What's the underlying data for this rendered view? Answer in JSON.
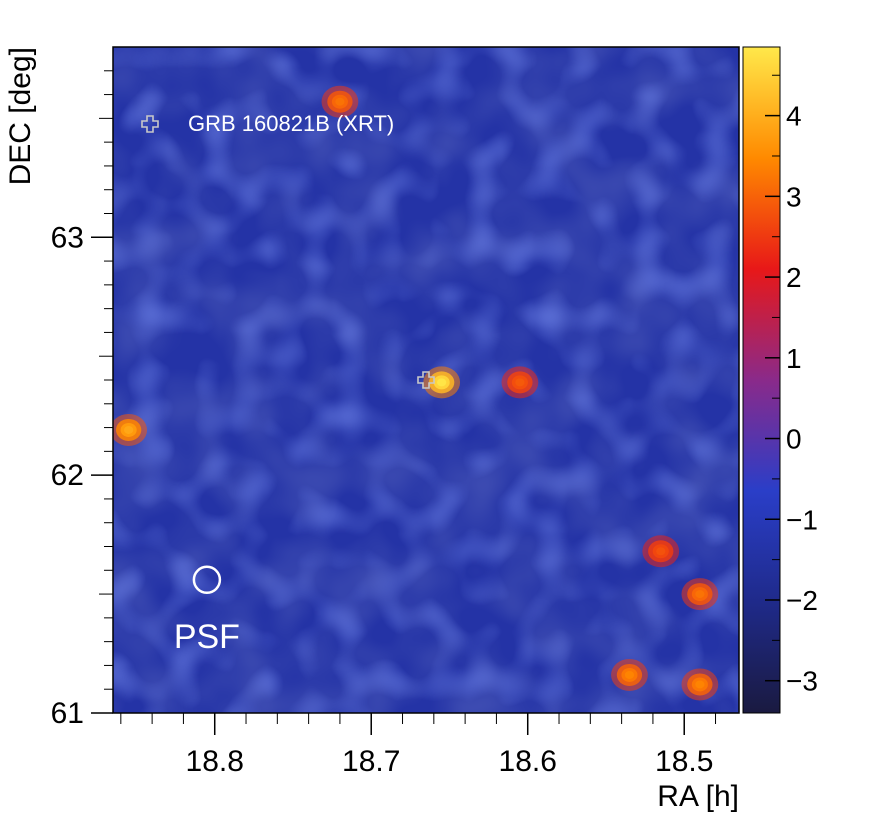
{
  "chart_data": {
    "type": "heatmap",
    "title": "",
    "xlabel": "RA [h]",
    "ylabel": "DEC [deg]",
    "x_reversed": true,
    "xlim": [
      18.865,
      18.465
    ],
    "ylim": [
      61.0,
      63.8
    ],
    "xticks": [
      {
        "value": 18.8,
        "label": "18.8"
      },
      {
        "value": 18.7,
        "label": "18.7"
      },
      {
        "value": 18.6,
        "label": "18.6"
      },
      {
        "value": 18.5,
        "label": "18.5"
      }
    ],
    "yticks": [
      {
        "value": 61,
        "label": "61"
      },
      {
        "value": 62,
        "label": "62"
      },
      {
        "value": 63,
        "label": "63"
      }
    ],
    "colorbar": {
      "range": [
        -3.4,
        4.85
      ],
      "ticks": [
        {
          "value": 4,
          "label": "4"
        },
        {
          "value": 3,
          "label": "3"
        },
        {
          "value": 2,
          "label": "2"
        },
        {
          "value": 1,
          "label": "1"
        },
        {
          "value": 0,
          "label": "0"
        },
        {
          "value": -1,
          "label": "−1"
        },
        {
          "value": -2,
          "label": "−2"
        },
        {
          "value": -3,
          "label": "−3"
        }
      ],
      "colors": [
        "#1a1a40",
        "#1f2a8a",
        "#2a3ec8",
        "#8a2a8a",
        "#e81818",
        "#ff8a00",
        "#ffe84a"
      ]
    },
    "background_level": 1.5,
    "hotspots": [
      {
        "ra": 18.655,
        "dec": 62.39,
        "value": 4.8
      },
      {
        "ra": 18.855,
        "dec": 62.19,
        "value": 3.9
      },
      {
        "ra": 18.72,
        "dec": 63.57,
        "value": 3.2
      },
      {
        "ra": 18.535,
        "dec": 61.16,
        "value": 3.4
      },
      {
        "ra": 18.49,
        "dec": 61.12,
        "value": 3.4
      },
      {
        "ra": 18.49,
        "dec": 61.5,
        "value": 3.2
      },
      {
        "ra": 18.605,
        "dec": 62.39,
        "value": 2.9
      },
      {
        "ra": 18.515,
        "dec": 61.68,
        "value": 2.8
      }
    ],
    "markers": [
      {
        "kind": "cross",
        "ra": 18.665,
        "dec": 62.4,
        "name": "grb-marker"
      }
    ],
    "legend": {
      "position": "top-left",
      "entries": [
        {
          "symbol": "cross",
          "label": "GRB 160821B (XRT)"
        }
      ]
    },
    "psf": {
      "label": "PSF",
      "ra": 18.805,
      "dec": 61.56
    }
  }
}
